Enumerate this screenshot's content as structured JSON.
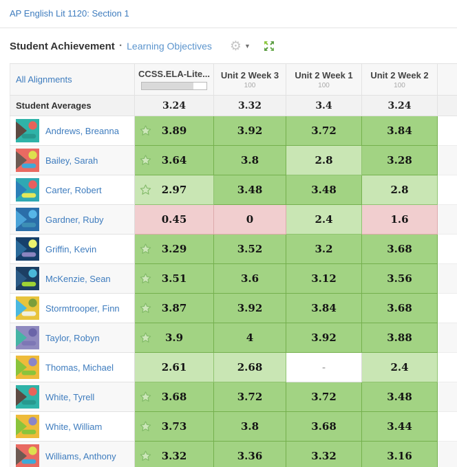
{
  "page": {
    "course_link": "AP English Lit 1120: Section 1"
  },
  "header": {
    "title": "Student Achievement",
    "separator": "·",
    "subtitle_link": "Learning Objectives",
    "icons": {
      "gear": "gear-settings",
      "gear_caret": "chevron-down",
      "expand": "expand-arrows"
    }
  },
  "colors": {
    "link_blue": "#3e7cbe",
    "sublink_blue": "#5b94cd",
    "green_cell": "#a2d383",
    "light_green_cell": "#c9e6b4",
    "pink_cell": "#f1cecf",
    "expand_green": "#5d9e45",
    "star_stroke": "#82ba68",
    "star_fill": "#cde7ba"
  },
  "table": {
    "columns": [
      {
        "label": "All Alignments",
        "type": "link"
      },
      {
        "label": "CCSS.ELA-Lite...",
        "progress_percent": 80
      },
      {
        "label": "Unit 2 Week 3",
        "points": "100"
      },
      {
        "label": "Unit 2 Week 1",
        "points": "100"
      },
      {
        "label": "Unit 2 Week 2",
        "points": "100"
      },
      {
        "label": "",
        "partial": true
      }
    ],
    "averages_row": {
      "label": "Student Averages",
      "values": [
        "3.24",
        "3.32",
        "3.4",
        "3.24"
      ]
    },
    "students": [
      {
        "name": "Andrews, Breanna",
        "starred": true,
        "avatar_colors": [
          "#2fb3a8",
          "#5d4a42",
          "#e8635a",
          "#27998f"
        ],
        "grades": [
          {
            "value": "3.89",
            "level": "green"
          },
          {
            "value": "3.92",
            "level": "green"
          },
          {
            "value": "3.72",
            "level": "green"
          },
          {
            "value": "3.84",
            "level": "green"
          }
        ]
      },
      {
        "name": "Bailey, Sarah",
        "starred": true,
        "avatar_colors": [
          "#e96a62",
          "#6d5a52",
          "#dde04e",
          "#3fa9d8"
        ],
        "grades": [
          {
            "value": "3.64",
            "level": "green"
          },
          {
            "value": "3.8",
            "level": "green"
          },
          {
            "value": "2.8",
            "level": "light"
          },
          {
            "value": "3.28",
            "level": "green"
          }
        ]
      },
      {
        "name": "Carter, Robert",
        "starred": true,
        "avatar_colors": [
          "#2fa8b3",
          "#2b7fb8",
          "#e85f5f",
          "#e3e85a"
        ],
        "grades": [
          {
            "value": "2.97",
            "level": "light"
          },
          {
            "value": "3.48",
            "level": "green"
          },
          {
            "value": "3.48",
            "level": "green"
          },
          {
            "value": "2.8",
            "level": "light"
          }
        ]
      },
      {
        "name": "Gardner, Ruby",
        "starred": false,
        "avatar_colors": [
          "#2a6ea9",
          "#4aa3d8",
          "#56b6e8",
          "#3d8fb5"
        ],
        "grades": [
          {
            "value": "0.45",
            "level": "pink"
          },
          {
            "value": "0",
            "level": "pink"
          },
          {
            "value": "2.4",
            "level": "light"
          },
          {
            "value": "1.6",
            "level": "pink"
          }
        ]
      },
      {
        "name": "Griffin, Kevin",
        "starred": true,
        "avatar_colors": [
          "#16406b",
          "#2a6a9a",
          "#ecf36e",
          "#8a85c0"
        ],
        "grades": [
          {
            "value": "3.29",
            "level": "green"
          },
          {
            "value": "3.52",
            "level": "green"
          },
          {
            "value": "3.2",
            "level": "green"
          },
          {
            "value": "3.68",
            "level": "green"
          }
        ]
      },
      {
        "name": "McKenzie, Sean",
        "starred": true,
        "avatar_colors": [
          "#1c3f63",
          "#2a5a85",
          "#4ab8d8",
          "#9fd435"
        ],
        "grades": [
          {
            "value": "3.51",
            "level": "green"
          },
          {
            "value": "3.6",
            "level": "green"
          },
          {
            "value": "3.12",
            "level": "green"
          },
          {
            "value": "3.56",
            "level": "green"
          }
        ]
      },
      {
        "name": "Stormtrooper, Finn",
        "starred": true,
        "avatar_colors": [
          "#e8c43c",
          "#4ab8e0",
          "#7a9e3c",
          "#f0f0e0"
        ],
        "grades": [
          {
            "value": "3.87",
            "level": "green"
          },
          {
            "value": "3.92",
            "level": "green"
          },
          {
            "value": "3.84",
            "level": "green"
          },
          {
            "value": "3.68",
            "level": "green"
          }
        ]
      },
      {
        "name": "Taylor, Robyn",
        "starred": true,
        "avatar_colors": [
          "#8f8abf",
          "#45b5a5",
          "#6a64a8",
          "#7d77b5"
        ],
        "grades": [
          {
            "value": "3.9",
            "level": "green"
          },
          {
            "value": "4",
            "level": "green"
          },
          {
            "value": "3.92",
            "level": "green"
          },
          {
            "value": "3.88",
            "level": "green"
          }
        ]
      },
      {
        "name": "Thomas, Michael",
        "starred": false,
        "avatar_colors": [
          "#eebb3a",
          "#8ac43c",
          "#8a85c8",
          "#8ac43c"
        ],
        "grades": [
          {
            "value": "2.61",
            "level": "light"
          },
          {
            "value": "2.68",
            "level": "light"
          },
          {
            "value": "-",
            "level": "empty"
          },
          {
            "value": "2.4",
            "level": "light"
          }
        ]
      },
      {
        "name": "White, Tyrell",
        "starred": true,
        "avatar_colors": [
          "#2fb3a8",
          "#5d4a42",
          "#e8635a",
          "#27998f"
        ],
        "grades": [
          {
            "value": "3.68",
            "level": "green"
          },
          {
            "value": "3.72",
            "level": "green"
          },
          {
            "value": "3.72",
            "level": "green"
          },
          {
            "value": "3.48",
            "level": "green"
          }
        ]
      },
      {
        "name": "White, William",
        "starred": true,
        "avatar_colors": [
          "#eebb3a",
          "#8ac43c",
          "#8a85c8",
          "#8ac43c"
        ],
        "grades": [
          {
            "value": "3.73",
            "level": "green"
          },
          {
            "value": "3.8",
            "level": "green"
          },
          {
            "value": "3.68",
            "level": "green"
          },
          {
            "value": "3.44",
            "level": "green"
          }
        ]
      },
      {
        "name": "Williams, Anthony",
        "starred": true,
        "avatar_colors": [
          "#e96a62",
          "#6d5a52",
          "#dde04e",
          "#3fa9d8"
        ],
        "grades": [
          {
            "value": "3.32",
            "level": "green"
          },
          {
            "value": "3.36",
            "level": "green"
          },
          {
            "value": "3.32",
            "level": "green"
          },
          {
            "value": "3.16",
            "level": "green"
          }
        ]
      }
    ]
  }
}
